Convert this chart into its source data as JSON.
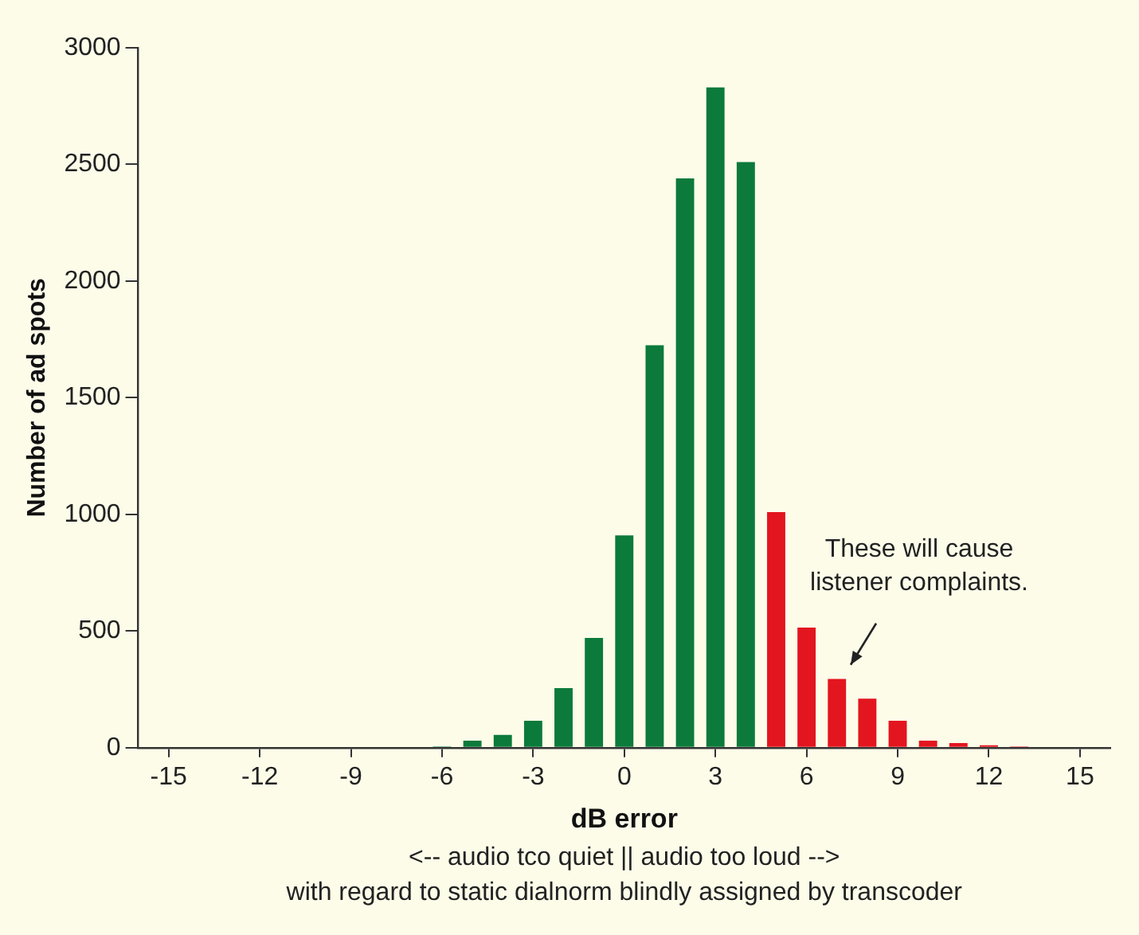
{
  "chart_data": {
    "type": "bar",
    "xlabel": "dB error",
    "ylabel": "Number of ad spots",
    "x": [
      -6,
      -5,
      -4,
      -3,
      -2,
      -1,
      0,
      1,
      2,
      3,
      4,
      5,
      6,
      7,
      8,
      9,
      10,
      11,
      12,
      13
    ],
    "values": [
      5,
      30,
      55,
      115,
      255,
      470,
      910,
      1725,
      2440,
      2830,
      2510,
      1010,
      515,
      295,
      210,
      115,
      30,
      20,
      10,
      5
    ],
    "colors": [
      "#0b7a3b",
      "#0b7a3b",
      "#0b7a3b",
      "#0b7a3b",
      "#0b7a3b",
      "#0b7a3b",
      "#0b7a3b",
      "#0b7a3b",
      "#0b7a3b",
      "#0b7a3b",
      "#0b7a3b",
      "#e3151f",
      "#e3151f",
      "#e3151f",
      "#e3151f",
      "#e3151f",
      "#e3151f",
      "#e3151f",
      "#e3151f",
      "#e3151f"
    ],
    "xlim": [
      -16,
      16
    ],
    "xticks": [
      -15,
      -12,
      -9,
      -6,
      -3,
      0,
      3,
      6,
      9,
      12,
      15
    ],
    "ylim": [
      0,
      3000
    ],
    "yticks": [
      0,
      500,
      1000,
      1500,
      2000,
      2500,
      3000
    ],
    "annotations": [
      "These will cause listener complaints.",
      "<-- audio tco quiet || audio too loud -->",
      "with regard to static dialnorm blindly assigned by transcoder"
    ]
  }
}
